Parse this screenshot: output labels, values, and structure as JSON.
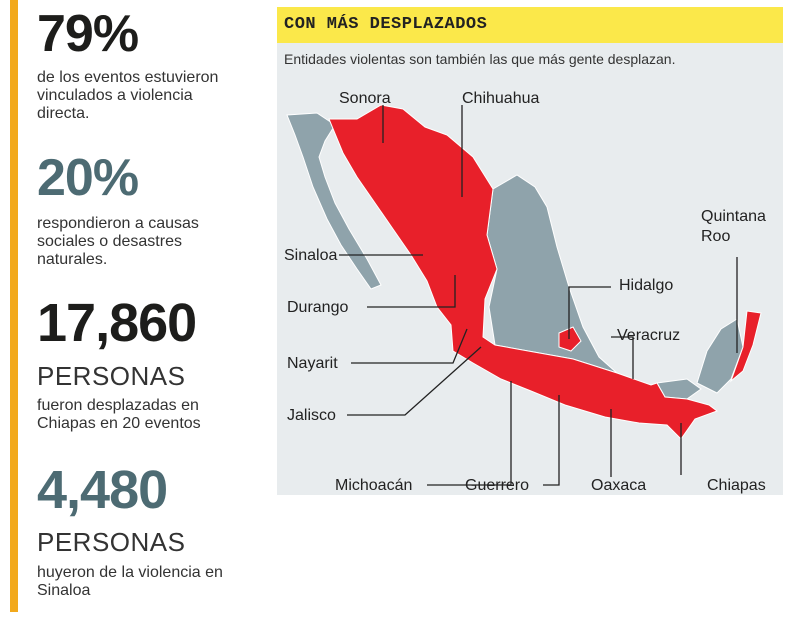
{
  "stats": [
    {
      "value": "79%",
      "caption": [
        "de los eventos estuvieron",
        "vinculados a violencia",
        "directa."
      ]
    },
    {
      "value": "20%",
      "caption": [
        "respondieron a causas",
        "sociales o desastres",
        "naturales."
      ]
    },
    {
      "value": "17,860",
      "unit": "PERSONAS",
      "caption": [
        "fueron desplazadas en",
        "Chiapas en 20 eventos"
      ]
    },
    {
      "value": "4,480",
      "unit": "PERSONAS",
      "caption": [
        "huyeron de la violencia en",
        "Sinaloa"
      ]
    }
  ],
  "panel": {
    "title": "CON MÁS DESPLAZADOS",
    "subtitle": "Entidades violentas son también las que más gente desplazan."
  },
  "states": [
    "Sonora",
    "Chihuahua",
    "Sinaloa",
    "Durango",
    "Nayarit",
    "Jalisco",
    "Michoacán",
    "Guerrero",
    "Oaxaca",
    "Chiapas",
    "Hidalgo",
    "Veracruz",
    "Quintana",
    "Roo"
  ],
  "colors": {
    "accent": "#f2a91c",
    "highlight": "#e8202a",
    "other": "#8fa3ab",
    "title_bg": "#fbe84a"
  }
}
